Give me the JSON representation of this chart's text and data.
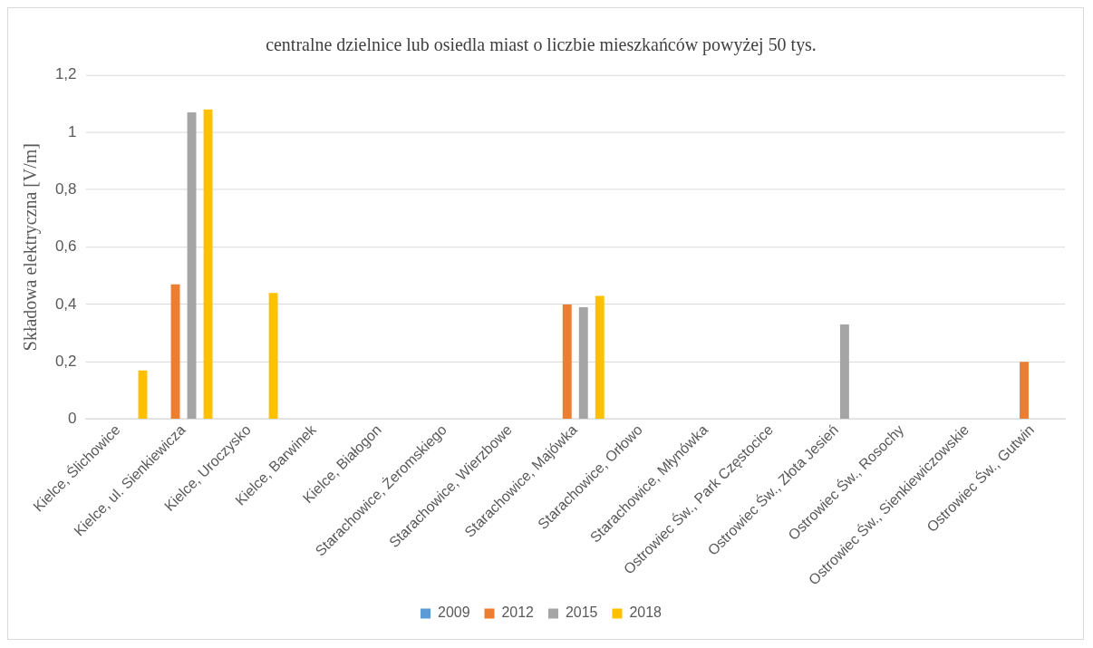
{
  "chart_data": {
    "type": "bar",
    "title": "centralne dzielnice lub osiedla miast o liczbie mieszkańców powyżej 50 tys.",
    "ylabel": "Składowa elektryczna [V/m]",
    "categories": [
      "Kielce, Ślichowice",
      "Kielce, ul. Sienkiewicza",
      "Kielce, Uroczysko",
      "Kielce, Barwinek",
      "Kielce, Białogon",
      "Starachowice, Żeromskiego",
      "Starachowice, Wierzbowe",
      "Starachowice, Majówka",
      "Starachowice, Orłowo",
      "Starachowice, Młynówka",
      "Ostrowiec Św., Park Częstocice",
      "Ostrowiec Św., Złota Jesień",
      "Ostrowiec Św., Rosochy",
      "Ostrowiec Św., Sienkiewiczowskie",
      "Ostrowiec Św., Gutwin"
    ],
    "series": [
      {
        "name": "2009",
        "color": "#5b9bd5",
        "values": [
          null,
          null,
          null,
          null,
          null,
          null,
          null,
          null,
          null,
          null,
          null,
          null,
          null,
          null,
          null
        ]
      },
      {
        "name": "2012",
        "color": "#ed7d31",
        "values": [
          null,
          0.47,
          null,
          null,
          null,
          null,
          null,
          0.4,
          null,
          null,
          null,
          null,
          null,
          null,
          0.2
        ]
      },
      {
        "name": "2015",
        "color": "#a5a5a5",
        "values": [
          null,
          1.07,
          null,
          null,
          null,
          null,
          null,
          0.39,
          null,
          null,
          null,
          0.33,
          null,
          null,
          null
        ]
      },
      {
        "name": "2018",
        "color": "#ffc000",
        "values": [
          0.17,
          1.08,
          0.44,
          null,
          null,
          null,
          null,
          0.43,
          null,
          null,
          null,
          null,
          null,
          null,
          null
        ]
      }
    ],
    "ylim": [
      0,
      1.2
    ],
    "yticks": [
      0,
      {
        "value": 0.2,
        "label": "0,2"
      },
      {
        "value": 0.4,
        "label": "0,4"
      },
      {
        "value": 0.6,
        "label": "0,6"
      },
      {
        "value": 0.8,
        "label": "0,8"
      },
      1,
      {
        "value": 1.2,
        "label": "1,2"
      }
    ],
    "grid": "y",
    "legend": "bottom"
  }
}
